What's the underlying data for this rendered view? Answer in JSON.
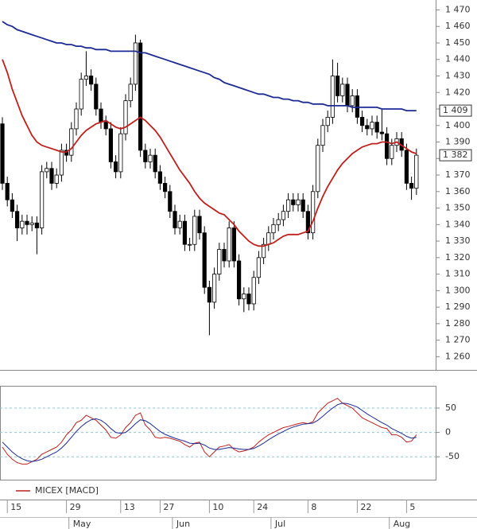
{
  "chart_data": [
    {
      "type": "candlestick",
      "open": [
        1401,
        1365,
        1355,
        1348,
        1338,
        1342,
        1340,
        1341,
        1338,
        1372,
        1374,
        1365,
        1370,
        1385,
        1382,
        1398,
        1410,
        1428,
        1430,
        1425,
        1410,
        1402,
        1398,
        1378,
        1372,
        1395,
        1415,
        1425,
        1450,
        1385,
        1378,
        1382,
        1372,
        1365,
        1360,
        1348,
        1338,
        1342,
        1328,
        1328,
        1345,
        1335,
        1302,
        1293,
        1310,
        1325,
        1318,
        1338,
        1318,
        1295,
        1298,
        1292,
        1308,
        1320,
        1328,
        1335,
        1340,
        1343,
        1348,
        1355,
        1352,
        1355,
        1348,
        1335,
        1360,
        1388,
        1400,
        1405,
        1430,
        1418,
        1425,
        1412,
        1418,
        1405,
        1400,
        1398,
        1402,
        1396,
        1395,
        1380,
        1388,
        1392,
        1385,
        1365,
        1362
      ],
      "high": [
        1405,
        1369,
        1359,
        1352,
        1346,
        1346,
        1345,
        1345,
        1376,
        1378,
        1378,
        1374,
        1389,
        1389,
        1402,
        1414,
        1432,
        1445,
        1434,
        1429,
        1414,
        1406,
        1402,
        1382,
        1399,
        1419,
        1429,
        1455,
        1452,
        1389,
        1386,
        1386,
        1376,
        1369,
        1364,
        1352,
        1346,
        1346,
        1332,
        1349,
        1349,
        1339,
        1306,
        1314,
        1329,
        1329,
        1342,
        1342,
        1322,
        1302,
        1302,
        1312,
        1324,
        1332,
        1339,
        1344,
        1347,
        1352,
        1359,
        1359,
        1359,
        1359,
        1352,
        1364,
        1392,
        1404,
        1409,
        1440,
        1438,
        1429,
        1429,
        1422,
        1422,
        1409,
        1404,
        1406,
        1406,
        1410,
        1399,
        1392,
        1396,
        1396,
        1389,
        1369,
        1386
      ],
      "low": [
        1361,
        1351,
        1344,
        1330,
        1334,
        1334,
        1336,
        1322,
        1334,
        1368,
        1361,
        1362,
        1366,
        1378,
        1378,
        1394,
        1406,
        1424,
        1421,
        1406,
        1398,
        1394,
        1374,
        1368,
        1368,
        1391,
        1411,
        1421,
        1381,
        1374,
        1374,
        1368,
        1361,
        1356,
        1344,
        1334,
        1334,
        1324,
        1324,
        1324,
        1331,
        1298,
        1273,
        1289,
        1306,
        1314,
        1314,
        1314,
        1291,
        1287,
        1288,
        1288,
        1304,
        1316,
        1324,
        1331,
        1336,
        1339,
        1344,
        1348,
        1348,
        1344,
        1331,
        1331,
        1356,
        1384,
        1396,
        1401,
        1414,
        1414,
        1408,
        1408,
        1401,
        1396,
        1394,
        1394,
        1392,
        1391,
        1376,
        1376,
        1384,
        1381,
        1361,
        1355,
        1358
      ],
      "close": [
        1365,
        1355,
        1348,
        1338,
        1342,
        1340,
        1341,
        1338,
        1372,
        1374,
        1365,
        1370,
        1385,
        1382,
        1398,
        1410,
        1428,
        1430,
        1425,
        1410,
        1402,
        1398,
        1378,
        1372,
        1395,
        1415,
        1425,
        1450,
        1385,
        1378,
        1382,
        1372,
        1365,
        1360,
        1348,
        1338,
        1342,
        1328,
        1328,
        1345,
        1335,
        1302,
        1293,
        1310,
        1325,
        1318,
        1338,
        1318,
        1295,
        1298,
        1292,
        1308,
        1320,
        1328,
        1335,
        1340,
        1343,
        1348,
        1355,
        1352,
        1355,
        1348,
        1335,
        1360,
        1388,
        1400,
        1405,
        1430,
        1418,
        1425,
        1412,
        1418,
        1405,
        1400,
        1398,
        1402,
        1396,
        1395,
        1380,
        1388,
        1392,
        1385,
        1365,
        1362,
        1382
      ],
      "last_label": "1 382",
      "series": [
        {
          "color": "#c0201c",
          "values": [
            1440,
            1432,
            1422,
            1414,
            1406,
            1400,
            1394,
            1390,
            1388,
            1387,
            1386,
            1385,
            1384,
            1384,
            1386,
            1390,
            1394,
            1397,
            1399,
            1401,
            1402,
            1403,
            1401,
            1399,
            1398,
            1399,
            1401,
            1403,
            1405,
            1403,
            1400,
            1397,
            1393,
            1388,
            1383,
            1378,
            1373,
            1369,
            1365,
            1360,
            1356,
            1353,
            1351,
            1349,
            1347,
            1346,
            1343,
            1340,
            1336,
            1333,
            1330,
            1328,
            1327,
            1327,
            1328,
            1329,
            1331,
            1333,
            1334,
            1334,
            1334,
            1335,
            1336,
            1342,
            1350,
            1357,
            1363,
            1368,
            1373,
            1377,
            1380,
            1383,
            1385,
            1387,
            1388,
            1389,
            1389,
            1390,
            1390,
            1389,
            1390,
            1388,
            1386,
            1384,
            1383
          ]
        },
        {
          "color": "#1c2a96",
          "last_label": "1 409",
          "values": [
            1463,
            1461,
            1460,
            1458,
            1457,
            1456,
            1455,
            1454,
            1453,
            1452,
            1451,
            1450,
            1450,
            1449,
            1449,
            1448,
            1448,
            1447,
            1447,
            1446,
            1446,
            1446,
            1445,
            1445,
            1445,
            1445,
            1445,
            1445,
            1444,
            1444,
            1443,
            1442,
            1441,
            1440,
            1439,
            1438,
            1437,
            1436,
            1435,
            1434,
            1433,
            1432,
            1431,
            1429,
            1428,
            1426,
            1425,
            1424,
            1423,
            1422,
            1421,
            1420,
            1419,
            1419,
            1418,
            1417,
            1417,
            1416,
            1416,
            1415,
            1415,
            1414,
            1414,
            1413,
            1413,
            1413,
            1412,
            1412,
            1412,
            1412,
            1412,
            1411,
            1411,
            1411,
            1411,
            1411,
            1411,
            1410,
            1410,
            1410,
            1410,
            1410,
            1409,
            1409,
            1409
          ]
        }
      ],
      "ylim": [
        1252,
        1476
      ],
      "yticks": [
        {
          "value": 1470,
          "label": "1 470"
        },
        {
          "value": 1460,
          "label": "1 460"
        },
        {
          "value": 1450,
          "label": "1 450"
        },
        {
          "value": 1440,
          "label": "1 440"
        },
        {
          "value": 1430,
          "label": "1 430"
        },
        {
          "value": 1420,
          "label": "1 420"
        },
        {
          "value": 1410,
          "label": "1 410"
        },
        {
          "value": 1400,
          "label": "1 400"
        },
        {
          "value": 1390,
          "label": "1 390"
        },
        {
          "value": 1380,
          "label": "1 380"
        },
        {
          "value": 1370,
          "label": "1 370"
        },
        {
          "value": 1360,
          "label": "1 360"
        },
        {
          "value": 1350,
          "label": "1 350"
        },
        {
          "value": 1340,
          "label": "1 340"
        },
        {
          "value": 1330,
          "label": "1 330"
        },
        {
          "value": 1320,
          "label": "1 320"
        },
        {
          "value": 1310,
          "label": "1 310"
        },
        {
          "value": 1300,
          "label": "1 300"
        },
        {
          "value": 1290,
          "label": "1 290"
        },
        {
          "value": 1280,
          "label": "1 280"
        },
        {
          "value": 1270,
          "label": "1 270"
        },
        {
          "value": 1260,
          "label": "1 260"
        }
      ],
      "xticks": [
        {
          "value": 1,
          "label": "15"
        },
        {
          "value": 13,
          "label": "29"
        },
        {
          "value": 24,
          "label": "13"
        },
        {
          "value": 32,
          "label": "27"
        },
        {
          "value": 42,
          "label": "10"
        },
        {
          "value": 51,
          "label": "24"
        },
        {
          "value": 62,
          "label": "8"
        },
        {
          "value": 72,
          "label": "22"
        },
        {
          "value": 82,
          "label": "5"
        }
      ],
      "xmonths": [
        {
          "value": 13.5,
          "label": "May"
        },
        {
          "value": 34.5,
          "label": "Jun"
        },
        {
          "value": 54.5,
          "label": "Jul"
        },
        {
          "value": 78.5,
          "label": "Aug"
        }
      ]
    },
    {
      "type": "line",
      "series": [
        {
          "name": "MICEX [MACD]",
          "color": "#c0201c",
          "values": [
            -30,
            -45,
            -55,
            -62,
            -65,
            -65,
            -60,
            -55,
            -45,
            -40,
            -35,
            -30,
            -20,
            -5,
            5,
            20,
            25,
            35,
            30,
            25,
            15,
            5,
            -10,
            -12,
            -5,
            10,
            20,
            35,
            40,
            15,
            5,
            -10,
            -12,
            -10,
            -12,
            -15,
            -18,
            -25,
            -30,
            -22,
            -20,
            -40,
            -50,
            -40,
            -30,
            -28,
            -25,
            -35,
            -40,
            -38,
            -35,
            -30,
            -20,
            -12,
            -5,
            0,
            5,
            10,
            12,
            15,
            18,
            20,
            18,
            22,
            40,
            50,
            60,
            65,
            70,
            60,
            55,
            50,
            40,
            30,
            25,
            20,
            15,
            10,
            8,
            -5,
            -5,
            -10,
            -20,
            -18,
            -5
          ]
        },
        {
          "color": "#1c2a96",
          "values": [
            -20,
            -30,
            -40,
            -48,
            -54,
            -58,
            -60,
            -58,
            -55,
            -50,
            -45,
            -40,
            -32,
            -22,
            -10,
            2,
            12,
            20,
            26,
            28,
            25,
            18,
            8,
            0,
            -2,
            0,
            8,
            18,
            26,
            24,
            18,
            10,
            2,
            -4,
            -8,
            -12,
            -15,
            -18,
            -22,
            -23,
            -22,
            -26,
            -32,
            -35,
            -35,
            -33,
            -31,
            -32,
            -34,
            -35,
            -35,
            -33,
            -28,
            -22,
            -15,
            -9,
            -3,
            2,
            7,
            11,
            14,
            17,
            18,
            19,
            25,
            33,
            42,
            50,
            57,
            60,
            59,
            56,
            52,
            45,
            38,
            32,
            26,
            20,
            15,
            8,
            3,
            -2,
            -8,
            -12,
            -10
          ]
        }
      ],
      "ylim": [
        -97,
        94
      ],
      "yticks": [
        50,
        0,
        -50
      ],
      "grid": true
    }
  ]
}
